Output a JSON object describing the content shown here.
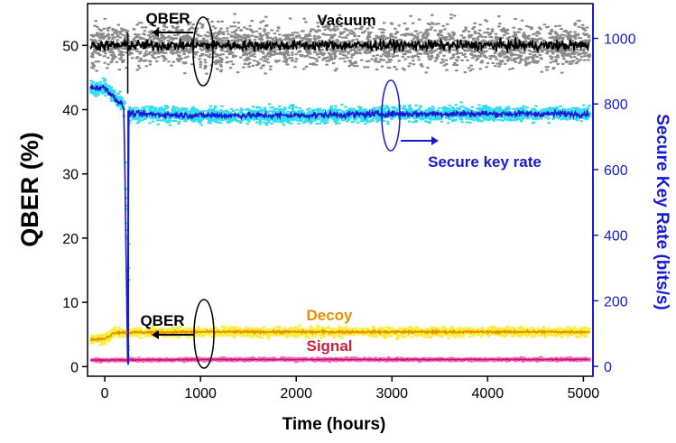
{
  "chart_data": {
    "type": "line",
    "xlabel": "Time (hours)",
    "ylabel_left": "QBER (%)",
    "ylabel_right": "Secure Key Rate (bits/s)",
    "xlim": [
      -180,
      5100
    ],
    "ylim_left": [
      -1.5,
      56.5
    ],
    "ylim_right": [
      -30,
      1106
    ],
    "x_ticks": [
      0,
      1000,
      2000,
      3000,
      4000,
      5000
    ],
    "x_tick_labels": [
      "0",
      "1000",
      "2000",
      "3000",
      "4000",
      "5000"
    ],
    "y_left_ticks": [
      0,
      10,
      20,
      30,
      40,
      50
    ],
    "y_left_tick_labels": [
      "0",
      "10",
      "20",
      "30",
      "40",
      "50"
    ],
    "y_right_ticks": [
      0,
      200,
      400,
      600,
      800,
      1000
    ],
    "y_right_tick_labels": [
      "0",
      "200",
      "400",
      "600",
      "800",
      "1000"
    ],
    "grid": false,
    "annotations": {
      "qber_top": "QBER",
      "vacuum": "Vacuum",
      "secure_key_rate": "Secure key rate",
      "qber_bottom": "QBER",
      "decoy": "Decoy",
      "signal": "Signal"
    },
    "series": [
      {
        "name": "Vacuum",
        "axis": "left",
        "color": "#000000",
        "raw_color": "#8a8a8a",
        "x": [
          -150,
          240,
          1000,
          2000,
          3000,
          4000,
          5000
        ],
        "y": [
          50,
          50,
          50,
          50,
          50,
          50,
          50
        ]
      },
      {
        "name": "Secure key rate",
        "axis": "right",
        "color": "#1a1ad6",
        "raw_color": "#33ddf0",
        "x": [
          -150,
          0,
          200,
          240,
          250,
          1000,
          2000,
          3000,
          4000,
          5000
        ],
        "y": [
          850,
          850,
          790,
          5,
          770,
          765,
          765,
          770,
          770,
          770
        ]
      },
      {
        "name": "Decoy",
        "axis": "left",
        "color": "#ee8c00",
        "raw_color": "#f7ef3a",
        "x": [
          -150,
          0,
          100,
          1000,
          2000,
          3000,
          4000,
          5000
        ],
        "y": [
          4.2,
          4.3,
          5.3,
          5.4,
          5.4,
          5.4,
          5.4,
          5.4
        ]
      },
      {
        "name": "Signal",
        "axis": "left",
        "color": "#d01070",
        "raw_color": "#f070c0",
        "x": [
          -150,
          1000,
          2000,
          3000,
          4000,
          5000
        ],
        "y": [
          1.0,
          1.1,
          1.1,
          1.1,
          1.1,
          1.1
        ]
      }
    ]
  },
  "colors": {
    "axis_left": "#000000",
    "axis_right": "#1a1ad6",
    "qber_arrow": "#000000",
    "key_rate_arrow": "#1a1ad6"
  }
}
